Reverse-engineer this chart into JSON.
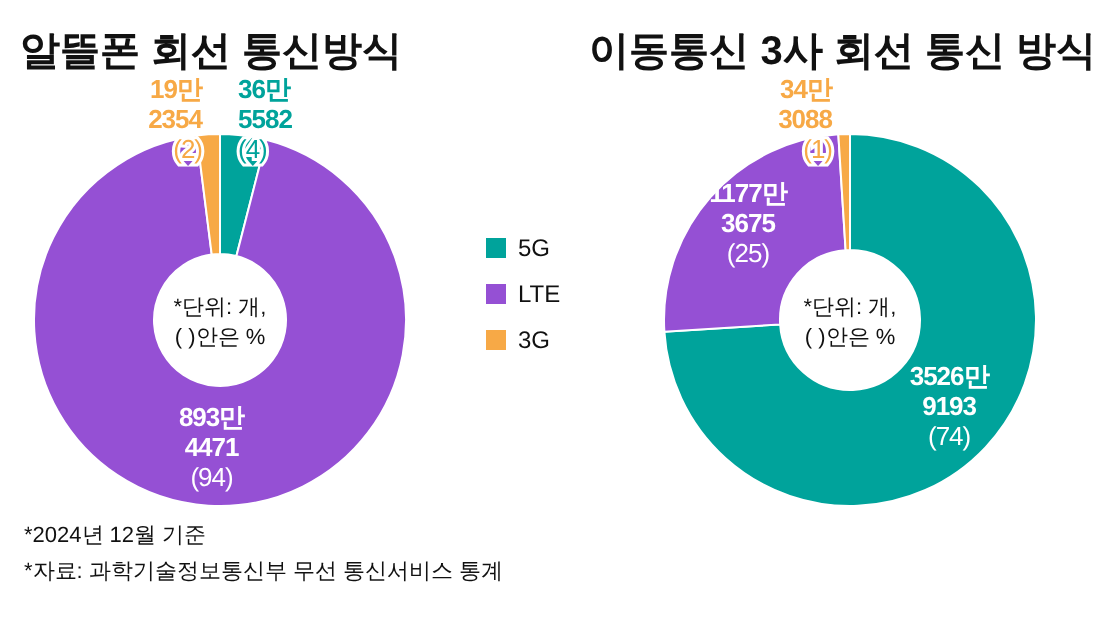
{
  "chart_data": [
    {
      "type": "donut",
      "title": "알뜰폰 회선 통신방식",
      "categories": [
        "5G",
        "LTE",
        "3G"
      ],
      "values": [
        4,
        94,
        2
      ],
      "colors": [
        "#00a39b",
        "#9550d4",
        "#f7a946"
      ],
      "value_labels": [
        "36만 5582 (4)",
        "893만 4471 (94)",
        "19만 2354 (2)"
      ],
      "legend": "right",
      "annotations": [
        "*단위: 개,\n( )안은 %",
        "*2024년 12월 기준",
        "*자료: 과학기술정보통신부 무선 통신서비스 통계"
      ]
    },
    {
      "type": "donut",
      "title": "이동통신 3사 회선 통신 방식",
      "categories": [
        null,
        null,
        null
      ],
      "values": [
        74,
        25,
        1
      ],
      "colors": [
        "#00a39b",
        "#9550d4",
        "#f7a946"
      ],
      "value_labels": [
        "3526만 9193 (74)",
        "1177만 3675 (25)",
        "34만 3088 (1)"
      ],
      "annotations": [
        "*단위: 개,\n( )안은 %"
      ]
    }
  ]
}
